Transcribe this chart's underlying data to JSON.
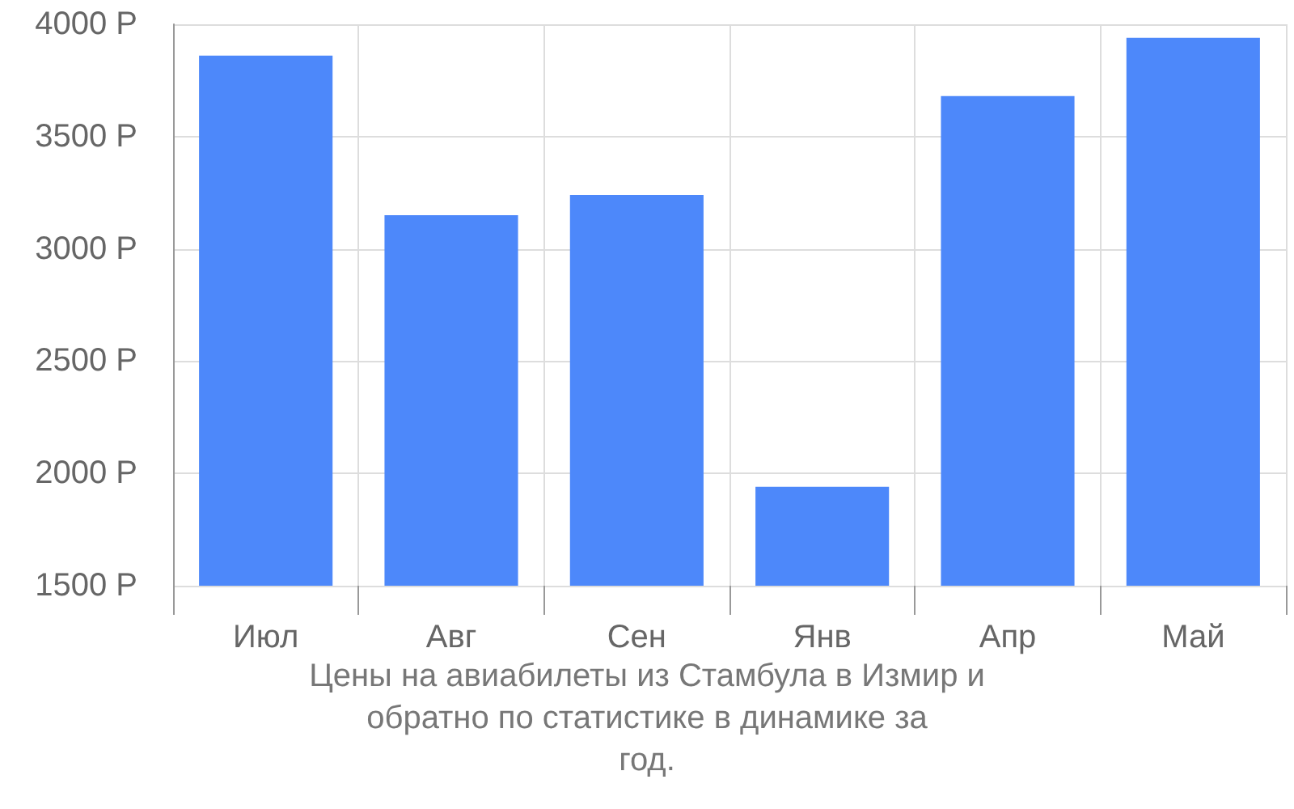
{
  "chart_data": {
    "type": "bar",
    "title": "Цены на авиабилеты из Стамбула в Измир и обратно по статистике в динамике за год.",
    "categories": [
      "Июл",
      "Авг",
      "Сен",
      "Янв",
      "Апр",
      "Май"
    ],
    "values": [
      3860,
      3150,
      3240,
      1940,
      3680,
      3940
    ],
    "color": "#4d88fa",
    "ylim": [
      1500,
      4000
    ],
    "yticks": [
      {
        "value": 1500,
        "label": "1500 Р"
      },
      {
        "value": 2000,
        "label": "2000 Р"
      },
      {
        "value": 2500,
        "label": "2500 Р"
      },
      {
        "value": 3000,
        "label": "3000 Р"
      },
      {
        "value": 3500,
        "label": "3500 Р"
      },
      {
        "value": 4000,
        "label": "4000 Р"
      }
    ],
    "grid": true
  }
}
